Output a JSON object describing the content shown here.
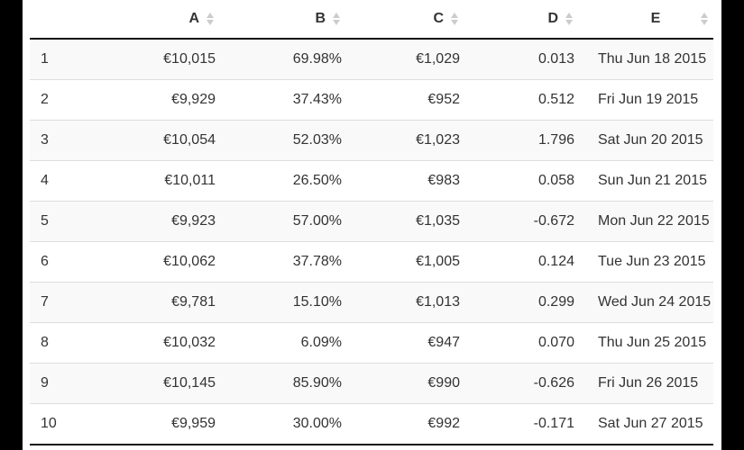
{
  "columns": {
    "index": "",
    "a": "A",
    "b": "B",
    "c": "C",
    "d": "D",
    "e": "E"
  },
  "rows": [
    {
      "idx": "1",
      "a": "€10,015",
      "b": "69.98%",
      "c": "€1,029",
      "d": "0.013",
      "e": "Thu Jun 18 2015"
    },
    {
      "idx": "2",
      "a": "€9,929",
      "b": "37.43%",
      "c": "€952",
      "d": "0.512",
      "e": "Fri Jun 19 2015"
    },
    {
      "idx": "3",
      "a": "€10,054",
      "b": "52.03%",
      "c": "€1,023",
      "d": "1.796",
      "e": "Sat Jun 20 2015"
    },
    {
      "idx": "4",
      "a": "€10,011",
      "b": "26.50%",
      "c": "€983",
      "d": "0.058",
      "e": "Sun Jun 21 2015"
    },
    {
      "idx": "5",
      "a": "€9,923",
      "b": "57.00%",
      "c": "€1,035",
      "d": "-0.672",
      "e": "Mon Jun 22 2015"
    },
    {
      "idx": "6",
      "a": "€10,062",
      "b": "37.78%",
      "c": "€1,005",
      "d": "0.124",
      "e": "Tue Jun 23 2015"
    },
    {
      "idx": "7",
      "a": "€9,781",
      "b": "15.10%",
      "c": "€1,013",
      "d": "0.299",
      "e": "Wed Jun 24 2015"
    },
    {
      "idx": "8",
      "a": "€10,032",
      "b": "6.09%",
      "c": "€947",
      "d": "0.070",
      "e": "Thu Jun 25 2015"
    },
    {
      "idx": "9",
      "a": "€10,145",
      "b": "85.90%",
      "c": "€990",
      "d": "-0.626",
      "e": "Fri Jun 26 2015"
    },
    {
      "idx": "10",
      "a": "€9,959",
      "b": "30.00%",
      "c": "€992",
      "d": "-0.171",
      "e": "Sat Jun 27 2015"
    }
  ],
  "icons": {
    "sort": "sort-both-icon"
  },
  "colors": {
    "background": "#000000",
    "panel": "#ffffff",
    "text": "#333333",
    "stripe": "#f9f9f9",
    "row_border": "#dddddd",
    "header_border": "#111111",
    "sort_icon": "#cccccc"
  }
}
